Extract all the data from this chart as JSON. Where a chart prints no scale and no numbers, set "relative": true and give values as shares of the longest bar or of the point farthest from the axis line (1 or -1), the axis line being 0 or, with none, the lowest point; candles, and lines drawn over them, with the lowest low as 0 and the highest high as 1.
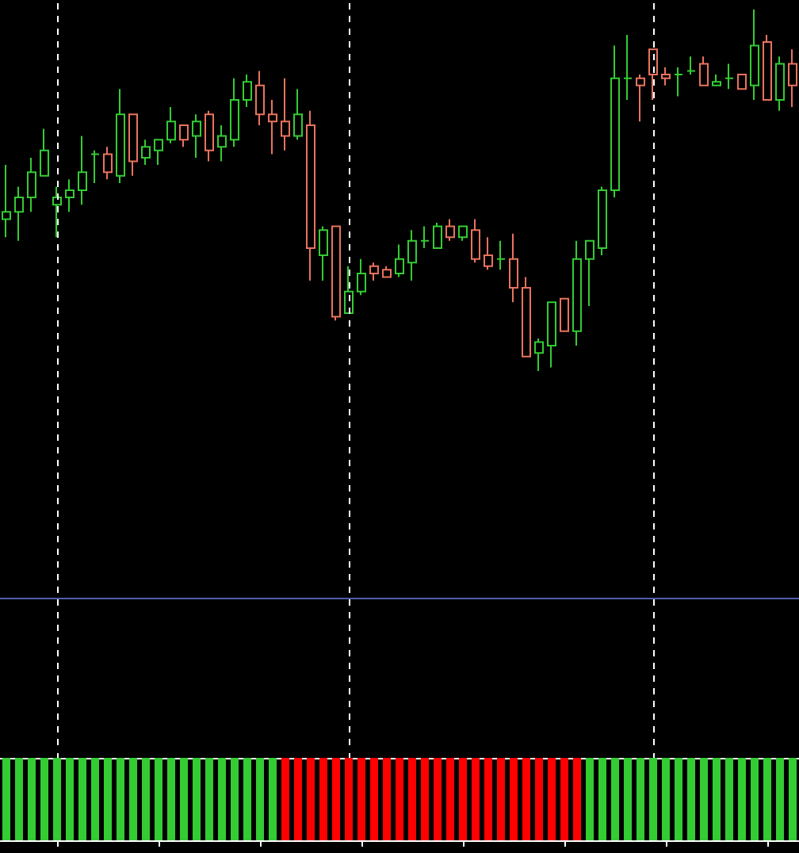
{
  "chart_data": [
    {
      "type": "candlestick",
      "relative": true,
      "tick_labels": false,
      "grid": "x",
      "categories": [
        null,
        null,
        null,
        null,
        null,
        null,
        null,
        null,
        null,
        null,
        null,
        null,
        null,
        null,
        null,
        null,
        null,
        null,
        null,
        null,
        null,
        null,
        null,
        null,
        null,
        null,
        null,
        null,
        null,
        null,
        null,
        null,
        null,
        null,
        null,
        null,
        null,
        null,
        null,
        null,
        null,
        null,
        null,
        null,
        null,
        null,
        null,
        null,
        null,
        null,
        null,
        null,
        null,
        null,
        null,
        null,
        null,
        null,
        null,
        null,
        null,
        null,
        null
      ],
      "ohlc": [
        [
          0.42,
          0.57,
          0.37,
          0.44
        ],
        [
          0.44,
          0.51,
          0.36,
          0.48
        ],
        [
          0.48,
          0.59,
          0.44,
          0.55
        ],
        [
          0.54,
          0.67,
          0.54,
          0.61
        ],
        [
          0.46,
          0.51,
          0.37,
          0.48
        ],
        [
          0.48,
          0.53,
          0.44,
          0.5
        ],
        [
          0.5,
          0.65,
          0.46,
          0.55
        ],
        [
          0.6,
          0.61,
          0.52,
          0.6
        ],
        [
          0.6,
          0.62,
          0.53,
          0.55
        ],
        [
          0.54,
          0.78,
          0.52,
          0.71
        ],
        [
          0.71,
          0.71,
          0.54,
          0.58
        ],
        [
          0.59,
          0.64,
          0.57,
          0.62
        ],
        [
          0.61,
          0.64,
          0.57,
          0.64
        ],
        [
          0.64,
          0.73,
          0.63,
          0.69
        ],
        [
          0.68,
          0.68,
          0.62,
          0.64
        ],
        [
          0.65,
          0.71,
          0.59,
          0.69
        ],
        [
          0.71,
          0.72,
          0.58,
          0.61
        ],
        [
          0.62,
          0.68,
          0.58,
          0.65
        ],
        [
          0.64,
          0.81,
          0.62,
          0.75
        ],
        [
          0.75,
          0.82,
          0.73,
          0.8
        ],
        [
          0.79,
          0.83,
          0.68,
          0.71
        ],
        [
          0.71,
          0.75,
          0.6,
          0.69
        ],
        [
          0.69,
          0.81,
          0.61,
          0.65
        ],
        [
          0.65,
          0.78,
          0.64,
          0.71
        ],
        [
          0.68,
          0.72,
          0.25,
          0.34
        ],
        [
          0.32,
          0.4,
          0.25,
          0.39
        ],
        [
          0.4,
          0.4,
          0.14,
          0.15
        ],
        [
          0.16,
          0.29,
          0.16,
          0.22
        ],
        [
          0.22,
          0.31,
          0.21,
          0.27
        ],
        [
          0.29,
          0.3,
          0.25,
          0.27
        ],
        [
          0.28,
          0.29,
          0.26,
          0.26
        ],
        [
          0.27,
          0.35,
          0.26,
          0.31
        ],
        [
          0.3,
          0.39,
          0.25,
          0.36
        ],
        [
          0.36,
          0.4,
          0.34,
          0.36
        ],
        [
          0.34,
          0.41,
          0.34,
          0.4
        ],
        [
          0.4,
          0.42,
          0.36,
          0.37
        ],
        [
          0.37,
          0.4,
          0.36,
          0.4
        ],
        [
          0.39,
          0.42,
          0.3,
          0.31
        ],
        [
          0.32,
          0.37,
          0.28,
          0.29
        ],
        [
          0.31,
          0.36,
          0.28,
          0.31
        ],
        [
          0.31,
          0.38,
          0.19,
          0.23
        ],
        [
          0.23,
          0.26,
          0.04,
          0.04
        ],
        [
          0.05,
          0.09,
          0,
          0.08
        ],
        [
          0.07,
          0.19,
          0.01,
          0.19
        ],
        [
          0.2,
          0.2,
          0.11,
          0.11
        ],
        [
          0.11,
          0.36,
          0.07,
          0.31
        ],
        [
          0.31,
          0.36,
          0.18,
          0.36
        ],
        [
          0.34,
          0.51,
          0.32,
          0.5
        ],
        [
          0.5,
          0.9,
          0.48,
          0.81
        ],
        [
          0.81,
          0.93,
          0.75,
          0.81
        ],
        [
          0.81,
          0.82,
          0.69,
          0.79
        ],
        [
          0.89,
          0.89,
          0.75,
          0.82
        ],
        [
          0.82,
          0.84,
          0.79,
          0.81
        ],
        [
          0.82,
          0.84,
          0.76,
          0.82
        ],
        [
          0.83,
          0.87,
          0.82,
          0.83
        ],
        [
          0.85,
          0.87,
          0.79,
          0.79
        ],
        [
          0.79,
          0.82,
          0.79,
          0.8
        ],
        [
          0.81,
          0.85,
          0.78,
          0.81
        ],
        [
          0.82,
          0.82,
          0.78,
          0.78
        ],
        [
          0.79,
          1,
          0.75,
          0.9
        ],
        [
          0.91,
          0.93,
          0.75,
          0.75
        ],
        [
          0.75,
          0.87,
          0.72,
          0.85
        ],
        [
          0.85,
          0.89,
          0.73,
          0.79
        ]
      ],
      "colors": [
        "#33cc33",
        "#33cc33",
        "#33cc33",
        "#33cc33",
        "#33cc33",
        "#33cc33",
        "#33cc33",
        "#33cc33",
        "#e9735f",
        "#33cc33",
        "#e9735f",
        "#33cc33",
        "#33cc33",
        "#33cc33",
        "#e9735f",
        "#33cc33",
        "#e9735f",
        "#33cc33",
        "#33cc33",
        "#33cc33",
        "#e9735f",
        "#e9735f",
        "#e9735f",
        "#33cc33",
        "#e9735f",
        "#33cc33",
        "#e9735f",
        "#33cc33",
        "#33cc33",
        "#e9735f",
        "#e9735f",
        "#33cc33",
        "#33cc33",
        "#33cc33",
        "#33cc33",
        "#e9735f",
        "#33cc33",
        "#e9735f",
        "#e9735f",
        "#33cc33",
        "#e9735f",
        "#e9735f",
        "#33cc33",
        "#33cc33",
        "#e9735f",
        "#33cc33",
        "#33cc33",
        "#33cc33",
        "#33cc33",
        "#33cc33",
        "#e9735f",
        "#e9735f",
        "#e9735f",
        "#33cc33",
        "#33cc33",
        "#e9735f",
        "#33cc33",
        "#33cc33",
        "#e9735f",
        "#33cc33",
        "#e9735f",
        "#33cc33",
        "#e9735f"
      ],
      "ref_lines": [
        {
          "axis": "y",
          "value": -0.63,
          "color": "#4f5bab"
        }
      ]
    },
    {
      "type": "bar",
      "relative": true,
      "tick_labels": false,
      "categories": [
        null,
        null,
        null,
        null,
        null,
        null,
        null,
        null,
        null,
        null,
        null,
        null,
        null,
        null,
        null,
        null,
        null,
        null,
        null,
        null,
        null,
        null,
        null,
        null,
        null,
        null,
        null,
        null,
        null,
        null,
        null,
        null,
        null,
        null,
        null,
        null,
        null,
        null,
        null,
        null,
        null,
        null,
        null,
        null,
        null,
        null,
        null,
        null,
        null,
        null,
        null,
        null,
        null,
        null,
        null,
        null,
        null,
        null,
        null,
        null,
        null,
        null,
        null
      ],
      "values": [
        1,
        1,
        1,
        1,
        1,
        1,
        1,
        1,
        1,
        1,
        1,
        1,
        1,
        1,
        1,
        1,
        1,
        1,
        1,
        1,
        1,
        1,
        1,
        1,
        1,
        1,
        1,
        1,
        1,
        1,
        1,
        1,
        1,
        1,
        1,
        1,
        1,
        1,
        1,
        1,
        1,
        1,
        1,
        1,
        1,
        1,
        1,
        1,
        1,
        1,
        1,
        1,
        1,
        1,
        1,
        1,
        1,
        1,
        1,
        1,
        1,
        1,
        1
      ],
      "colors": [
        "#33cc33",
        "#33cc33",
        "#33cc33",
        "#33cc33",
        "#33cc33",
        "#33cc33",
        "#33cc33",
        "#33cc33",
        "#33cc33",
        "#33cc33",
        "#33cc33",
        "#33cc33",
        "#33cc33",
        "#33cc33",
        "#33cc33",
        "#33cc33",
        "#33cc33",
        "#33cc33",
        "#33cc33",
        "#33cc33",
        "#33cc33",
        "#33cc33",
        "#ff0000",
        "#ff0000",
        "#ff0000",
        "#ff0000",
        "#ff0000",
        "#ff0000",
        "#ff0000",
        "#ff0000",
        "#ff0000",
        "#ff0000",
        "#ff0000",
        "#ff0000",
        "#ff0000",
        "#ff0000",
        "#ff0000",
        "#ff0000",
        "#ff0000",
        "#ff0000",
        "#ff0000",
        "#ff0000",
        "#ff0000",
        "#ff0000",
        "#ff0000",
        "#ff0000",
        "#33cc33",
        "#33cc33",
        "#33cc33",
        "#33cc33",
        "#33cc33",
        "#33cc33",
        "#33cc33",
        "#33cc33",
        "#33cc33",
        "#33cc33",
        "#33cc33",
        "#33cc33",
        "#33cc33",
        "#33cc33",
        "#33cc33",
        "#33cc33",
        "#33cc33"
      ]
    }
  ]
}
